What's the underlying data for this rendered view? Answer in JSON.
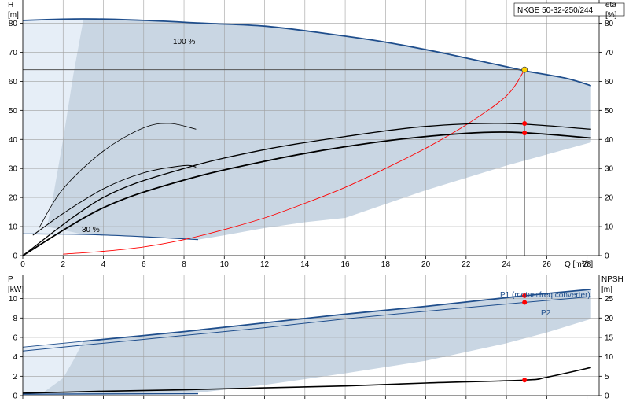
{
  "chart_data": [
    {
      "type": "line",
      "title": "NKGE 50-32-250/244",
      "xlabel": "Q [m³/h]",
      "ylabel_left": "H [m]",
      "ylabel_right": "eta [%]",
      "xlim": [
        0,
        28.6
      ],
      "ylim": [
        0,
        88
      ],
      "xticks": [
        0,
        2,
        4,
        6,
        8,
        10,
        12,
        14,
        16,
        18,
        20,
        22,
        24,
        26,
        28
      ],
      "yticks": [
        0,
        10,
        20,
        30,
        40,
        50,
        60,
        70,
        80
      ],
      "grid": true,
      "colors": {
        "max_curve": "#1f4e8c",
        "region": "#c9d6e3",
        "low_region": "#e6eef7",
        "system_curve": "#ff0000",
        "duty_point": "#ffd200",
        "curves": "#000000"
      },
      "labels": {
        "max_speed": "100 %",
        "min_speed": "30 %"
      },
      "duty_point": {
        "x": 24.9,
        "y": 64
      },
      "series": [
        {
          "role": "max-speed",
          "x": [
            0,
            3,
            6,
            9,
            12,
            15,
            18,
            21,
            24,
            25,
            27,
            28.2
          ],
          "y": [
            81,
            81.5,
            81,
            80,
            79,
            76.5,
            73.5,
            69.5,
            65,
            63.5,
            61,
            58.5
          ]
        },
        {
          "role": "min-speed",
          "x": [
            0,
            2,
            4,
            6,
            8.7
          ],
          "y": [
            7.5,
            7.4,
            7.1,
            6.5,
            5.5
          ]
        },
        {
          "role": "system-curve",
          "x": [
            2,
            4,
            6,
            8,
            10,
            12,
            14,
            16,
            18,
            20,
            22,
            24,
            24.9
          ],
          "y": [
            0.5,
            1.5,
            3,
            5.5,
            9,
            13,
            18,
            23.5,
            30,
            37,
            45,
            55,
            64
          ]
        },
        {
          "role": "efficiency-upper",
          "x": [
            0,
            4,
            8,
            12,
            16,
            20,
            24,
            28.2
          ],
          "y": [
            0,
            20,
            30,
            36.5,
            41,
            44.5,
            45.5,
            43.5
          ]
        },
        {
          "role": "efficiency-lower",
          "x": [
            0,
            4,
            8,
            12,
            16,
            20,
            24,
            28.2
          ],
          "y": [
            0,
            16.5,
            26,
            32.5,
            37.5,
            41,
            42.5,
            40.5
          ]
        },
        {
          "role": "efficiency-70",
          "x": [
            0.8,
            2,
            4,
            6,
            7.3,
            8.6
          ],
          "y": [
            9.5,
            23,
            36,
            44,
            45.5,
            43.5
          ]
        },
        {
          "role": "efficiency-50",
          "x": [
            0.5,
            2,
            4,
            6,
            8,
            8.6
          ],
          "y": [
            7,
            14.5,
            23,
            28.5,
            31,
            30.5
          ]
        }
      ],
      "markers": [
        {
          "x": 24.9,
          "y": 45.5
        },
        {
          "x": 24.9,
          "y": 42.2
        }
      ]
    },
    {
      "type": "line",
      "xlabel": "",
      "ylabel_left": "P [kW]",
      "ylabel_right": "NPSH [m]",
      "xlim": [
        0,
        28.6
      ],
      "ylim": [
        0,
        12.4
      ],
      "yticks": [
        0,
        2,
        4,
        6,
        8,
        10
      ],
      "yticks_right": [
        0,
        5,
        10,
        15,
        20,
        25
      ],
      "grid": true,
      "colors": {
        "p1": "#1f4e8c",
        "p2": "#1f4e8c",
        "npsh": "#000000",
        "markers": "#ff0000"
      },
      "series": [
        {
          "name": "P1 (motor+freq.converter)",
          "x": [
            0,
            3,
            8,
            12,
            16,
            20,
            24.9,
            28.2
          ],
          "y": [
            5.0,
            5.6,
            6.6,
            7.5,
            8.4,
            9.2,
            10.3,
            10.95
          ]
        },
        {
          "name": "P2",
          "x": [
            0,
            3,
            8,
            12,
            16,
            20,
            24.9,
            28.2
          ],
          "y": [
            4.6,
            5.2,
            6.2,
            7.0,
            7.9,
            8.7,
            9.6,
            10.2
          ]
        },
        {
          "role": "npsh",
          "x": [
            0,
            4,
            8,
            12,
            16,
            20,
            24.9,
            26,
            28.2
          ],
          "y": [
            0.25,
            0.45,
            0.6,
            0.8,
            1.0,
            1.3,
            1.6,
            1.9,
            2.9
          ]
        }
      ],
      "markers": [
        {
          "x": 24.9,
          "y": 10.3
        },
        {
          "x": 24.9,
          "y": 9.6
        },
        {
          "x": 24.9,
          "y": 1.6
        }
      ]
    }
  ]
}
